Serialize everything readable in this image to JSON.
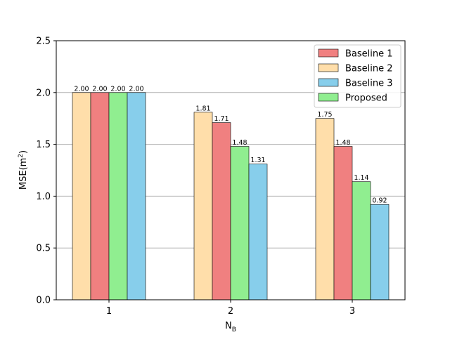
{
  "chart_data": {
    "type": "bar",
    "categories": [
      "1",
      "2",
      "3"
    ],
    "series": [
      {
        "name": "Baseline 2",
        "color": "#ffdeaa",
        "values": [
          2.0,
          1.81,
          1.75
        ]
      },
      {
        "name": "Baseline 1",
        "color": "#f08080",
        "values": [
          2.0,
          1.71,
          1.48
        ]
      },
      {
        "name": "Proposed",
        "color": "#90ee90",
        "values": [
          2.0,
          1.48,
          1.14
        ]
      },
      {
        "name": "Baseline 3",
        "color": "#87ceeb",
        "values": [
          2.0,
          1.31,
          0.92
        ]
      }
    ],
    "legend_order": [
      "Baseline 1",
      "Baseline 2",
      "Baseline 3",
      "Proposed"
    ],
    "data_labels": [
      [
        "2.00",
        "1.81",
        "1.75"
      ],
      [
        "2.00",
        "1.71",
        "1.48"
      ],
      [
        "2.00",
        "1.48",
        "1.14"
      ],
      [
        "2.00",
        "1.31",
        "0.92"
      ]
    ],
    "ylabel_main": "MSE(m",
    "ylabel_sup": "2",
    "ylabel_end": ")",
    "xlabel_main": "N",
    "xlabel_sub": "B",
    "ylim": [
      0,
      2.5
    ],
    "yticks": [
      "0.0",
      "0.5",
      "1.0",
      "1.5",
      "2.0",
      "2.5"
    ],
    "grid": "horizontal",
    "legend_position": "top-right"
  }
}
